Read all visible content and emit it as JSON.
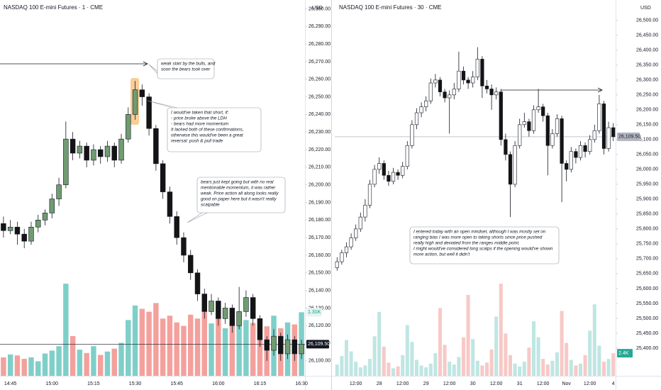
{
  "chart_data": [
    {
      "type": "candlestick",
      "title": "NASDAQ 100 E-mini Futures · 1 · CME",
      "currency": "USD",
      "categories": [
        null,
        "14:45",
        null,
        null,
        null,
        null,
        null,
        "15:00",
        null,
        null,
        null,
        null,
        null,
        "15:15",
        null,
        null,
        null,
        null,
        null,
        "15:30",
        null,
        null,
        null,
        null,
        null,
        "15:45",
        null,
        null,
        null,
        null,
        null,
        "16:00",
        null,
        null,
        null,
        null,
        null,
        "16:15",
        null,
        null,
        null,
        null,
        null,
        "16:30"
      ],
      "ohlc": [
        [
          26178,
          26182,
          26170,
          26174
        ],
        [
          26174,
          26180,
          26172,
          26176
        ],
        [
          26176,
          26179,
          26166,
          26172
        ],
        [
          26172,
          26175,
          26164,
          26168
        ],
        [
          26168,
          26179,
          26166,
          26176
        ],
        [
          26176,
          26183,
          26173,
          26180
        ],
        [
          26180,
          26186,
          26177,
          26184
        ],
        [
          26184,
          26195,
          26181,
          26192
        ],
        [
          26192,
          26204,
          26188,
          26200
        ],
        [
          26200,
          26236,
          26198,
          26226
        ],
        [
          26226,
          26230,
          26214,
          26218
        ],
        [
          26218,
          26225,
          26215,
          26222
        ],
        [
          26222,
          26224,
          26210,
          26214
        ],
        [
          26214,
          26223,
          26211,
          26220
        ],
        [
          26220,
          26222,
          26212,
          26216
        ],
        [
          26216,
          26225,
          26213,
          26222
        ],
        [
          26222,
          26224,
          26210,
          26214
        ],
        [
          26214,
          26229,
          26212,
          26226
        ],
        [
          26226,
          26244,
          26224,
          26240
        ],
        [
          26240,
          26259,
          26237,
          26254
        ],
        [
          26254,
          26257,
          26245,
          26250
        ],
        [
          26250,
          26252,
          26228,
          26232
        ],
        [
          26232,
          26234,
          26208,
          26212
        ],
        [
          26212,
          26214,
          26192,
          26196
        ],
        [
          26196,
          26199,
          26178,
          26182
        ],
        [
          26182,
          26185,
          26166,
          26170
        ],
        [
          26170,
          26173,
          26156,
          26160
        ],
        [
          26160,
          26163,
          26146,
          26150
        ],
        [
          26150,
          26152,
          26134,
          26138
        ],
        [
          26138,
          26141,
          26124,
          26128
        ],
        [
          26128,
          26138,
          26126,
          26134
        ],
        [
          26134,
          26136,
          26120,
          26124
        ],
        [
          26124,
          26133,
          26121,
          26130
        ],
        [
          26130,
          26132,
          26116,
          26120
        ],
        [
          26120,
          26142,
          26118,
          26128
        ],
        [
          26128,
          26140,
          26125,
          26136
        ],
        [
          26136,
          26138,
          26120,
          26124
        ],
        [
          26124,
          26126,
          26108,
          26112
        ],
        [
          26112,
          26114,
          26100,
          26106
        ],
        [
          26106,
          26118,
          26103,
          26114
        ],
        [
          26114,
          26116,
          26100,
          26104
        ],
        [
          26104,
          26115,
          26101,
          26112
        ],
        [
          26112,
          26114,
          26100,
          26104
        ],
        [
          26104,
          26112,
          26101,
          26109.5
        ]
      ],
      "volume": [
        380,
        440,
        420,
        350,
        380,
        300,
        460,
        520,
        610,
        1900,
        820,
        540,
        470,
        610,
        430,
        500,
        560,
        680,
        1150,
        1450,
        1380,
        1320,
        1500,
        1180,
        1240,
        1100,
        1030,
        1260,
        1180,
        1350,
        1080,
        1210,
        980,
        1120,
        1260,
        1150,
        1090,
        1180,
        1020,
        1240,
        980,
        1100,
        1060,
        1310
      ],
      "ylim": [
        26091.5,
        26303
      ],
      "yticks": [
        {
          "value": 26100,
          "label": "26,100.00"
        },
        {
          "value": 26110,
          "label": "26,110.00"
        },
        {
          "value": 26120,
          "label": "26,120.00"
        },
        {
          "value": 26130,
          "label": "26,130.00"
        },
        {
          "value": 26140,
          "label": "26,140.00"
        },
        {
          "value": 26150,
          "label": "26,150.00"
        },
        {
          "value": 26160,
          "label": "26,160.00"
        },
        {
          "value": 26170,
          "label": "26,170.00"
        },
        {
          "value": 26180,
          "label": "26,180.00"
        },
        {
          "value": 26190,
          "label": "26,190.00"
        },
        {
          "value": 26200,
          "label": "26,200.00"
        },
        {
          "value": 26210,
          "label": "26,210.00"
        },
        {
          "value": 26220,
          "label": "26,220.00"
        },
        {
          "value": 26230,
          "label": "26,230.00"
        },
        {
          "value": 26240,
          "label": "26,240.00"
        },
        {
          "value": 26250,
          "label": "26,250.00"
        },
        {
          "value": 26260,
          "label": "26,260.00"
        },
        {
          "value": 26270,
          "label": "26,270.00"
        },
        {
          "value": 26280,
          "label": "26,280.00"
        },
        {
          "value": 26290,
          "label": "26,290.00"
        },
        {
          "value": 26300,
          "label": "26,300.00"
        }
      ],
      "last_price": {
        "value": 26109.5,
        "label": "26,109.50"
      },
      "volume_label": {
        "value": 1310,
        "label": "1.31K"
      },
      "up_color": "#6f9c70",
      "down_color": "#141414",
      "volume_up_color": "#7fcfc9",
      "volume_down_color": "#f4a09c",
      "last_price_color": "#131722",
      "annotations": [
        {
          "lines": [
            "weak start by the bulls, and",
            "soon the bears took over"
          ]
        },
        {
          "lines": [
            "I would've taken that short, if:",
            "- price broke above the LDH",
            "- bears had more momentum",
            "It lacked both of these confirmations,",
            "otherwise this would've been a great",
            "reversal: push & pull trade"
          ]
        },
        {
          "lines": [
            "bears just kept going but with no real",
            "mentionable momentum, it was rather",
            "weak. Price action all along looks really",
            "good on paper here but it wasn't really",
            "scalpable"
          ]
        }
      ]
    },
    {
      "type": "candlestick",
      "title": "NASDAQ 100 E-mini Futures · 30 · CME",
      "currency": "USD",
      "categories": [
        null,
        null,
        null,
        null,
        "12:00",
        null,
        null,
        null,
        null,
        "28",
        null,
        null,
        null,
        null,
        "12:00",
        null,
        null,
        null,
        null,
        "29",
        null,
        null,
        null,
        null,
        "12:00",
        null,
        null,
        null,
        null,
        "30",
        null,
        null,
        null,
        null,
        "12:00",
        null,
        null,
        null,
        null,
        "31",
        null,
        null,
        null,
        null,
        "12:00",
        null,
        null,
        null,
        null,
        "Nov",
        null,
        null,
        null,
        null,
        "12:00",
        null,
        null,
        null,
        null,
        "4"
      ],
      "ohlc": [
        [
          25670,
          25705,
          25660,
          25690
        ],
        [
          25690,
          25730,
          25680,
          25720
        ],
        [
          25720,
          25755,
          25705,
          25740
        ],
        [
          25740,
          25785,
          25730,
          25770
        ],
        [
          25770,
          25815,
          25760,
          25800
        ],
        [
          25800,
          25855,
          25790,
          25840
        ],
        [
          25840,
          25900,
          25825,
          25880
        ],
        [
          25880,
          25965,
          25870,
          25950
        ],
        [
          25950,
          26015,
          25940,
          26000
        ],
        [
          26000,
          26040,
          25985,
          26020
        ],
        [
          26020,
          26030,
          25965,
          25980
        ],
        [
          25980,
          25995,
          25945,
          25960
        ],
        [
          25960,
          26005,
          25950,
          25990
        ],
        [
          25990,
          26000,
          25965,
          25980
        ],
        [
          25980,
          26025,
          25970,
          26010
        ],
        [
          26010,
          26095,
          26000,
          26080
        ],
        [
          26080,
          26165,
          26070,
          26150
        ],
        [
          26150,
          26205,
          26135,
          26190
        ],
        [
          26190,
          26225,
          26175,
          26210
        ],
        [
          26210,
          26245,
          26195,
          26230
        ],
        [
          26230,
          26305,
          26220,
          26290
        ],
        [
          26290,
          26320,
          26275,
          26300
        ],
        [
          26300,
          26310,
          26245,
          26260
        ],
        [
          26260,
          26270,
          26225,
          26240
        ],
        [
          26240,
          26265,
          26120,
          26250
        ],
        [
          26250,
          26290,
          26235,
          26270
        ],
        [
          26270,
          26395,
          26260,
          26330
        ],
        [
          26330,
          26345,
          26285,
          26300
        ],
        [
          26300,
          26310,
          26270,
          26290
        ],
        [
          26290,
          26330,
          26275,
          26310
        ],
        [
          26310,
          26410,
          26300,
          26370
        ],
        [
          26370,
          26380,
          26240,
          26280
        ],
        [
          26280,
          26300,
          26255,
          26270
        ],
        [
          26270,
          26285,
          26200,
          26250
        ],
        [
          26250,
          26275,
          26235,
          26260
        ],
        [
          26260,
          26270,
          26080,
          26100
        ],
        [
          26100,
          26120,
          26030,
          26050
        ],
        [
          26050,
          26060,
          25840,
          25950
        ],
        [
          25950,
          26095,
          25940,
          26080
        ],
        [
          26080,
          26170,
          26070,
          26150
        ],
        [
          26150,
          26190,
          26140,
          26160
        ],
        [
          26160,
          26170,
          26110,
          26130
        ],
        [
          26130,
          26215,
          26120,
          26200
        ],
        [
          26200,
          26270,
          26190,
          26210
        ],
        [
          26210,
          26220,
          26160,
          26180
        ],
        [
          26180,
          26190,
          25980,
          26080
        ],
        [
          26080,
          26135,
          26070,
          26120
        ],
        [
          26120,
          26185,
          26110,
          26170
        ],
        [
          26170,
          26180,
          25890,
          26020
        ],
        [
          26020,
          26030,
          25960,
          26000
        ],
        [
          26000,
          26075,
          25990,
          26060
        ],
        [
          26060,
          26070,
          26020,
          26040
        ],
        [
          26040,
          26095,
          26030,
          26080
        ],
        [
          26080,
          26090,
          26040,
          26060
        ],
        [
          26060,
          26115,
          26050,
          26100
        ],
        [
          26100,
          26150,
          26090,
          26130
        ],
        [
          26130,
          26250,
          26120,
          26220
        ],
        [
          26220,
          26230,
          26050,
          26070
        ],
        [
          26070,
          26160,
          26060,
          26140
        ],
        [
          26140,
          26155,
          26095,
          26109.5
        ]
      ],
      "volume": [
        1200,
        2100,
        3800,
        2600,
        1500,
        900,
        1100,
        1800,
        4200,
        6800,
        3100,
        1400,
        800,
        1000,
        2200,
        5400,
        3600,
        1700,
        1100,
        900,
        1300,
        2400,
        7200,
        3300,
        1500,
        1200,
        2000,
        4100,
        8600,
        3900,
        1600,
        1100,
        1400,
        2800,
        6300,
        9800,
        4500,
        2200,
        1300,
        1000,
        1500,
        3000,
        5800,
        4100,
        1800,
        1200,
        1600,
        2500,
        6900,
        3500,
        1700,
        1100,
        1300,
        2200,
        4800,
        7600,
        3200,
        1500,
        1800,
        2400
      ],
      "ylim": [
        25307,
        26540
      ],
      "yticks": [
        {
          "value": 25400,
          "label": "25,400.00"
        },
        {
          "value": 25450,
          "label": "25,450.00"
        },
        {
          "value": 25500,
          "label": "25,500.00"
        },
        {
          "value": 25550,
          "label": "25,550.00"
        },
        {
          "value": 25600,
          "label": "25,600.00"
        },
        {
          "value": 25650,
          "label": "25,650.00"
        },
        {
          "value": 25700,
          "label": "25,700.00"
        },
        {
          "value": 25750,
          "label": "25,750.00"
        },
        {
          "value": 25800,
          "label": "25,800.00"
        },
        {
          "value": 25850,
          "label": "25,850.00"
        },
        {
          "value": 25900,
          "label": "25,900.00"
        },
        {
          "value": 25950,
          "label": "25,950.00"
        },
        {
          "value": 26000,
          "label": "26,000.00"
        },
        {
          "value": 26050,
          "label": "26,050.00"
        },
        {
          "value": 26100,
          "label": "26,100.00"
        },
        {
          "value": 26150,
          "label": "26,150.00"
        },
        {
          "value": 26200,
          "label": "26,200.00"
        },
        {
          "value": 26250,
          "label": "26,250.00"
        },
        {
          "value": 26300,
          "label": "26,300.00"
        },
        {
          "value": 26350,
          "label": "26,350.00"
        },
        {
          "value": 26400,
          "label": "26,400.00"
        },
        {
          "value": 26450,
          "label": "26,450.00"
        },
        {
          "value": 26500,
          "label": "26,500.00"
        }
      ],
      "last_price": {
        "value": 26109.5,
        "label": "26,109.50"
      },
      "volume_label": {
        "value": 2400,
        "label": "2.4K"
      },
      "up_color": "#ffffff",
      "down_color": "#141414",
      "volume_up_color": "#bfe6e2",
      "volume_down_color": "#f7c9c6",
      "last_price_color": "#b2b5be",
      "annotations": [
        {
          "lines": [
            "I entered today with an open mindset, although I was mostly set on",
            "ranging bias I was more open to taking shorts since price pushed",
            "really high and deviated from the ranges middle point.",
            "I might would've considered long scalps if the opening would've shown",
            "more action, but well it didn't"
          ]
        }
      ]
    }
  ]
}
